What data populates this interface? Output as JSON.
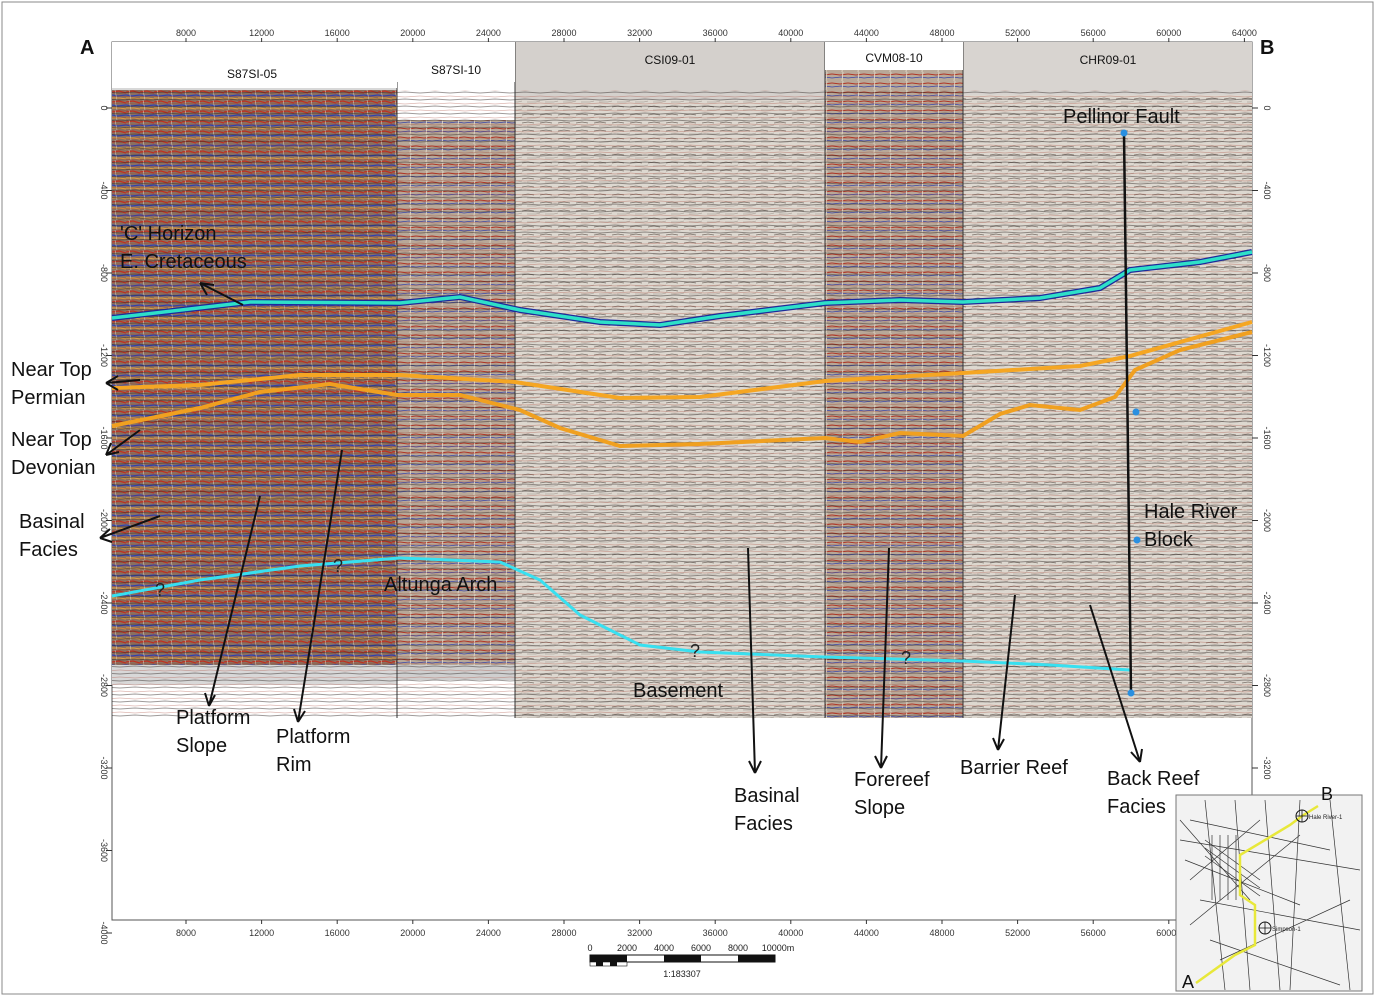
{
  "section_end_left": "A",
  "section_end_right": "B",
  "x_axis_ticks": [
    "8000",
    "12000",
    "16000",
    "20000",
    "24000",
    "28000",
    "32000",
    "36000",
    "40000",
    "44000",
    "48000",
    "52000",
    "56000",
    "60000",
    "64000"
  ],
  "y_axis_ticks": [
    "0",
    "-400",
    "-800",
    "-1200",
    "-1600",
    "-2000",
    "-2400",
    "-2800",
    "-3200",
    "-3600",
    "-4000"
  ],
  "survey_lines": [
    "S87SI-05",
    "S87SI-10",
    "CSI09-01",
    "CVM08-10",
    "CHR09-01"
  ],
  "annotations": {
    "c_horizon_1": "'C' Horizon",
    "c_horizon_2": "E. Cretaceous",
    "near_top_permian_1": "Near Top",
    "near_top_permian_2": "Permian",
    "near_top_devonian_1": "Near Top",
    "near_top_devonian_2": "Devonian",
    "basinal_facies_left_1": "Basinal",
    "basinal_facies_left_2": "Facies",
    "platform_slope_1": "Platform",
    "platform_slope_2": "Slope",
    "platform_rim_1": "Platform",
    "platform_rim_2": "Rim",
    "altunga_arch": "Altunga Arch",
    "basement": "Basement",
    "basinal_facies_center_1": "Basinal",
    "basinal_facies_center_2": "Facies",
    "forereef_slope_1": "Forereef",
    "forereef_slope_2": "Slope",
    "barrier_reef": "Barrier Reef",
    "back_reef_facies_1": "Back Reef",
    "back_reef_facies_2": "Facies",
    "pellinor_fault": "Pellinor Fault",
    "hale_river_block_1": "Hale River",
    "hale_river_block_2": "Block",
    "question_mark": "?"
  },
  "scale_bar": {
    "ticks": [
      "0",
      "2000",
      "4000",
      "6000",
      "8000",
      "10000m"
    ],
    "ratio": "1:183307"
  },
  "inset_map": {
    "point_a": "A",
    "point_b": "B",
    "well_1": "Hale River-1",
    "well_2": "Simpson-1"
  },
  "colors": {
    "c_horizon": "#2ee0c8",
    "permian": "#f5a623",
    "devonian": "#f0a020",
    "basement": "#38e0f0",
    "fault": "#111111",
    "map_route": "#e8e83a"
  }
}
